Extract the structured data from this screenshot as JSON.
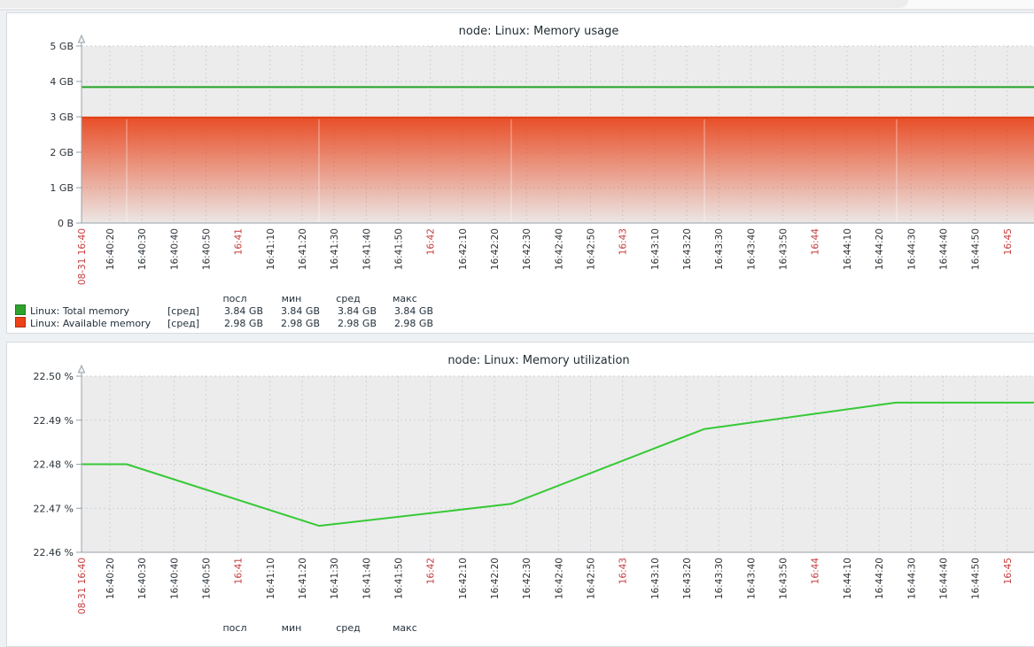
{
  "x_ticks": [
    {
      "label": "08-31 16:40",
      "red": true
    },
    {
      "label": "16:40:20"
    },
    {
      "label": "16:40:30"
    },
    {
      "label": "16:40:40"
    },
    {
      "label": "16:40:50"
    },
    {
      "label": "16:41",
      "red": true
    },
    {
      "label": "16:41:10"
    },
    {
      "label": "16:41:20"
    },
    {
      "label": "16:41:30"
    },
    {
      "label": "16:41:40"
    },
    {
      "label": "16:41:50"
    },
    {
      "label": "16:42",
      "red": true
    },
    {
      "label": "16:42:10"
    },
    {
      "label": "16:42:20"
    },
    {
      "label": "16:42:30"
    },
    {
      "label": "16:42:40"
    },
    {
      "label": "16:42:50"
    },
    {
      "label": "16:43",
      "red": true
    },
    {
      "label": "16:43:10"
    },
    {
      "label": "16:43:20"
    },
    {
      "label": "16:43:30"
    },
    {
      "label": "16:43:40"
    },
    {
      "label": "16:43:50"
    },
    {
      "label": "16:44",
      "red": true
    },
    {
      "label": "16:44:10"
    },
    {
      "label": "16:44:20"
    },
    {
      "label": "16:44:30"
    },
    {
      "label": "16:44:40"
    },
    {
      "label": "16:44:50"
    },
    {
      "label": "16:45",
      "red": true
    }
  ],
  "charts": [
    {
      "title": "node: Linux: Memory usage",
      "y_tick_labels": [
        "5 GB",
        "4 GB",
        "3 GB",
        "2 GB",
        "1 GB",
        "0 B"
      ],
      "legend": {
        "headers": [
          "посл",
          "мин",
          "сред",
          "макс"
        ],
        "rows": [
          {
            "color": "#2DA32D",
            "border": "#1E7A1E",
            "name": "Linux: Total memory",
            "func": "[сред]",
            "values": [
              "3.84 GB",
              "3.84 GB",
              "3.84 GB",
              "3.84 GB"
            ]
          },
          {
            "color": "#EE4019",
            "border": "#A93314",
            "name": "Linux: Available memory",
            "func": "[сред]",
            "values": [
              "2.98 GB",
              "2.98 GB",
              "2.98 GB",
              "2.98 GB"
            ]
          }
        ]
      }
    },
    {
      "title": "node: Linux: Memory utilization",
      "y_tick_labels": [
        "22.50 %",
        "22.49 %",
        "22.48 %",
        "22.47 %",
        "22.46 %"
      ],
      "legend": {
        "headers": [
          "посл",
          "мин",
          "сред",
          "макс"
        ],
        "rows": []
      }
    }
  ],
  "chart_data": [
    {
      "type": "area",
      "title": "node: Linux: Memory usage",
      "x": [
        "08-31 16:40",
        "16:41",
        "16:42",
        "16:43",
        "16:44",
        "16:45"
      ],
      "series": [
        {
          "name": "Linux: Total memory",
          "type": "line",
          "color": "#23A223",
          "unit": "GB",
          "values": [
            3.84,
            3.84,
            3.84,
            3.84,
            3.84,
            3.84
          ]
        },
        {
          "name": "Linux: Available memory",
          "type": "gradient-area",
          "color": "#E8431A",
          "unit": "GB",
          "values": [
            2.98,
            2.98,
            2.98,
            2.98,
            2.98,
            2.98
          ]
        }
      ],
      "ylabel": "",
      "ylim": [
        0,
        5
      ],
      "y_tick_labels": [
        "0 B",
        "1 GB",
        "2 GB",
        "3 GB",
        "4 GB",
        "5 GB"
      ],
      "grid": true,
      "legend_position": "bottom",
      "stats_columns": [
        "посл",
        "мин",
        "сред",
        "макс"
      ],
      "stats": {
        "Linux: Total memory": [
          3.84,
          3.84,
          3.84,
          3.84
        ],
        "Linux: Available memory": [
          2.98,
          2.98,
          2.98,
          2.98
        ]
      }
    },
    {
      "type": "line",
      "title": "node: Linux: Memory utilization",
      "series": [
        {
          "name": "Linux: Memory utilization",
          "color": "#36C936",
          "unit": "%",
          "x": [
            "16:40:10",
            "16:40:25",
            "16:41:25",
            "16:42:25",
            "16:43:25",
            "16:44:25",
            "16:45:15"
          ],
          "values": [
            22.48,
            22.48,
            22.466,
            22.471,
            22.488,
            22.494,
            22.494
          ]
        }
      ],
      "ylabel": "",
      "ylim": [
        22.46,
        22.5
      ],
      "y_tick_labels": [
        "22.46 %",
        "22.47 %",
        "22.48 %",
        "22.49 %",
        "22.50 %"
      ],
      "grid": true
    }
  ]
}
